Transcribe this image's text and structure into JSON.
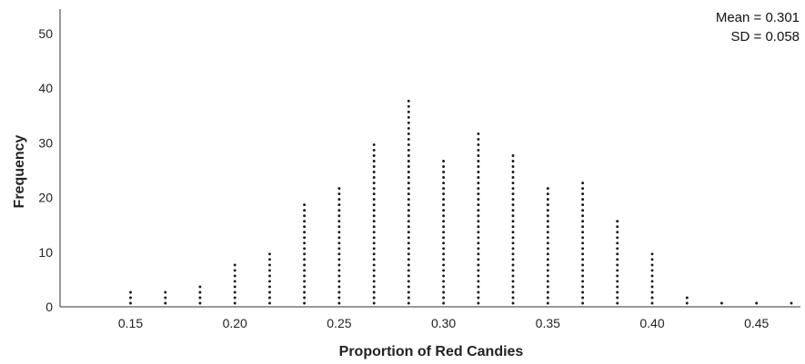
{
  "chart_data": {
    "type": "dot-plot",
    "title": "",
    "xlabel": "Proportion of Red Candies",
    "ylabel": "Frequency",
    "xlim": [
      0.12,
      0.475
    ],
    "ylim": [
      0,
      55
    ],
    "x_ticks": [
      "0.15",
      "0.20",
      "0.25",
      "0.30",
      "0.35",
      "0.40",
      "0.45"
    ],
    "y_ticks": [
      "0",
      "10",
      "20",
      "30",
      "40",
      "50"
    ],
    "annotations": {
      "mean": "Mean = 0.301",
      "sd": "SD = 0.058"
    },
    "grid": false,
    "x": [
      0.15,
      0.1667,
      0.1833,
      0.2,
      0.2167,
      0.2333,
      0.25,
      0.2667,
      0.2833,
      0.3,
      0.3167,
      0.3333,
      0.35,
      0.3667,
      0.3833,
      0.4,
      0.4167,
      0.4333,
      0.45,
      0.4667
    ],
    "values": [
      3,
      3,
      4,
      8,
      10,
      19,
      22,
      30,
      38,
      27,
      32,
      28,
      22,
      23,
      16,
      10,
      2,
      1,
      1,
      1
    ]
  }
}
